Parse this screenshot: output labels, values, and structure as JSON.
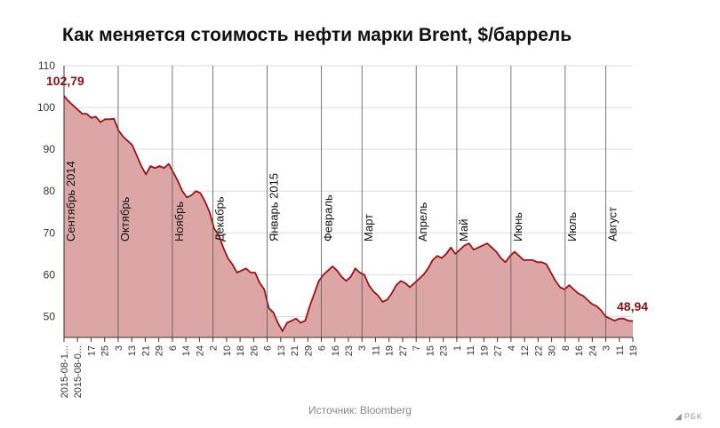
{
  "chart_data": {
    "type": "area",
    "title": "Как меняется стоимость нефти марки Brent, $/баррель",
    "source": "Источник: Bloomberg",
    "brand": "РБК",
    "colors": {
      "line": "#a30f0f",
      "fill": "#dca6a6",
      "label": "#8b1010",
      "grid": "#dddddd",
      "month_line": "#555555"
    },
    "ylim": [
      45,
      110
    ],
    "yticks": [
      50,
      60,
      70,
      80,
      90,
      100,
      110
    ],
    "start_label": "102,79",
    "end_label": "48,94",
    "day_ticks": [
      "2015-08-1...",
      "2015-08-0...",
      "17",
      "25",
      "3",
      "13",
      "21",
      "29",
      "6",
      "14",
      "24",
      "2",
      "10",
      "18",
      "26",
      "6",
      "13",
      "21",
      "29",
      "6",
      "16",
      "23",
      "3",
      "11",
      "19",
      "27",
      "7",
      "15",
      "23",
      "1",
      "11",
      "19",
      "27",
      "4",
      "12",
      "22",
      "30",
      "8",
      "16",
      "24",
      "3",
      "11",
      "19"
    ],
    "months": [
      {
        "label": "Сентябрь 2014",
        "tick_index": 0
      },
      {
        "label": "Октябрь",
        "tick_index": 4
      },
      {
        "label": "Ноябрь",
        "tick_index": 8
      },
      {
        "label": "Декабрь",
        "tick_index": 11
      },
      {
        "label": "Январь 2015",
        "tick_index": 15
      },
      {
        "label": "Февраль",
        "tick_index": 19
      },
      {
        "label": "Март",
        "tick_index": 22
      },
      {
        "label": "Апрель",
        "tick_index": 26
      },
      {
        "label": "Май",
        "tick_index": 29
      },
      {
        "label": "Июнь",
        "tick_index": 33
      },
      {
        "label": "Июль",
        "tick_index": 37
      },
      {
        "label": "Август",
        "tick_index": 40
      }
    ],
    "values": [
      102.8,
      101.5,
      100.5,
      99.5,
      98.5,
      98.5,
      97.5,
      97.8,
      96.5,
      97.2,
      97.2,
      97.3,
      94.5,
      93.0,
      92.0,
      91.0,
      88.5,
      86.0,
      84.0,
      86.0,
      85.5,
      86.0,
      85.5,
      86.5,
      84.5,
      82.5,
      80.0,
      78.5,
      79.0,
      80.0,
      79.5,
      77.5,
      75.0,
      71.0,
      69.5,
      66.5,
      64.0,
      62.5,
      60.5,
      61.0,
      61.5,
      60.5,
      60.5,
      58.0,
      56.5,
      52.0,
      51.0,
      48.5,
      46.5,
      48.5,
      49.0,
      49.5,
      48.5,
      49.0,
      52.5,
      55.5,
      58.5,
      60.0,
      61.0,
      62.0,
      61.0,
      59.5,
      58.5,
      59.5,
      61.5,
      60.5,
      60.0,
      57.5,
      56.0,
      55.0,
      53.5,
      54.0,
      55.5,
      57.5,
      58.5,
      58.0,
      57.0,
      58.0,
      59.0,
      60.0,
      61.5,
      63.5,
      64.5,
      64.0,
      65.0,
      66.5,
      65.0,
      66.0,
      67.0,
      67.5,
      66.0,
      66.5,
      67.0,
      67.5,
      66.5,
      65.5,
      64.0,
      63.0,
      64.5,
      65.5,
      64.5,
      63.5,
      63.5,
      63.5,
      63.0,
      63.0,
      62.5,
      60.5,
      58.5,
      57.0,
      56.5,
      57.5,
      56.5,
      55.5,
      55.0,
      54.0,
      53.0,
      52.5,
      51.5,
      50.0,
      49.5,
      49.0,
      49.5,
      49.5,
      49.0,
      48.94
    ]
  }
}
